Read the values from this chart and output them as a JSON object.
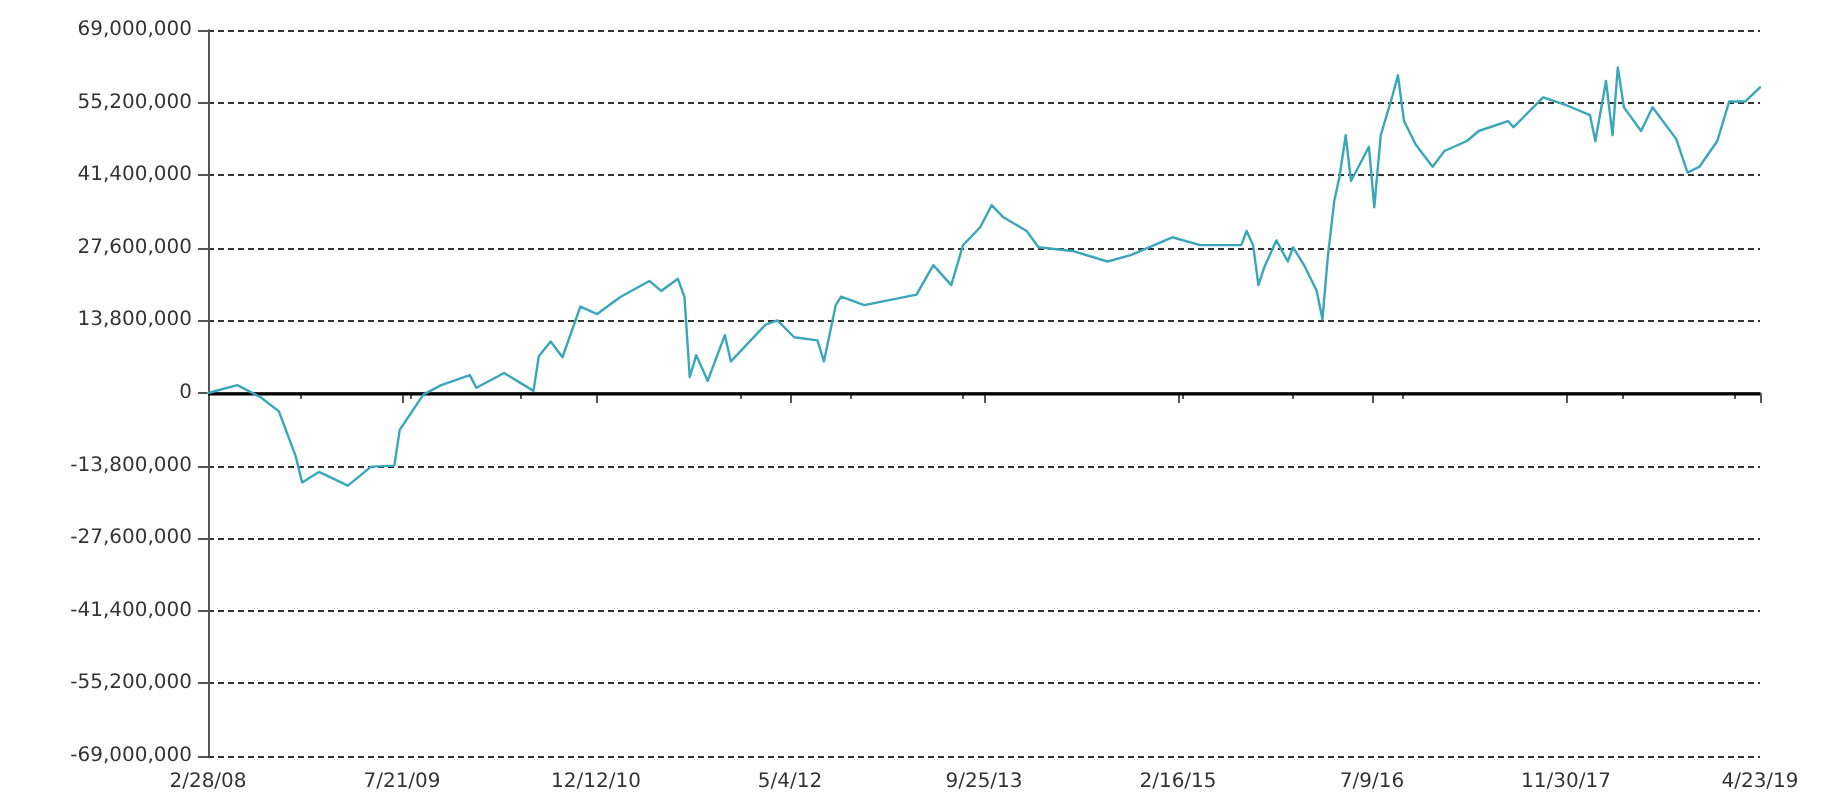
{
  "chart_data": {
    "type": "line",
    "x": [
      "2008-02-28",
      "2008-05-15",
      "2008-07-15",
      "2008-09-01",
      "2008-10-15",
      "2008-11-01",
      "2008-12-15",
      "2009-03-01",
      "2009-05-01",
      "2009-07-01",
      "2009-07-15",
      "2009-09-15",
      "2009-11-01",
      "2010-01-15",
      "2010-02-01",
      "2010-04-15",
      "2010-07-01",
      "2010-07-15",
      "2010-08-15",
      "2010-09-15",
      "2010-11-01",
      "2010-12-15",
      "2011-02-15",
      "2011-05-01",
      "2011-06-01",
      "2011-07-15",
      "2011-08-01",
      "2011-08-15",
      "2011-09-01",
      "2011-10-01",
      "2011-11-15",
      "2011-12-01",
      "2012-03-01",
      "2012-04-01",
      "2012-05-15",
      "2012-07-15",
      "2012-08-01",
      "2012-09-01",
      "2012-09-15",
      "2012-11-15",
      "2013-04-01",
      "2013-05-15",
      "2013-07-01",
      "2013-08-01",
      "2013-09-15",
      "2013-10-15",
      "2013-11-15",
      "2014-01-15",
      "2014-02-15",
      "2014-05-15",
      "2014-08-15",
      "2014-10-15",
      "2015-02-01",
      "2015-04-15",
      "2015-08-01",
      "2015-08-15",
      "2015-09-01",
      "2015-09-15",
      "2015-10-01",
      "2015-11-01",
      "2015-12-01",
      "2015-12-15",
      "2016-01-15",
      "2016-02-15",
      "2016-03-01",
      "2016-03-15",
      "2016-04-01",
      "2016-04-15",
      "2016-05-01",
      "2016-05-15",
      "2016-07-01",
      "2016-07-15",
      "2016-08-01",
      "2016-09-01",
      "2016-09-15",
      "2016-10-01",
      "2016-11-01",
      "2016-12-15",
      "2017-01-15",
      "2017-03-15",
      "2017-04-15",
      "2017-07-01",
      "2017-07-15",
      "2017-10-01",
      "2017-12-01",
      "2018-02-01",
      "2018-02-15",
      "2018-03-15",
      "2018-04-01",
      "2018-04-15",
      "2018-05-01",
      "2018-06-15",
      "2018-07-15",
      "2018-09-15",
      "2018-10-15",
      "2018-11-15",
      "2019-01-01",
      "2019-02-01",
      "2019-03-15",
      "2019-04-23"
    ],
    "series": [
      {
        "color": "#3aa6b9",
        "values": [
          0,
          1500000,
          -800000,
          -3500000,
          -12000000,
          -17000000,
          -15000000,
          -17600000,
          -14000000,
          -13800000,
          -7000000,
          -300000,
          1500000,
          3400000,
          1000000,
          3800000,
          400000,
          7000000,
          9800000,
          6800000,
          16400000,
          15000000,
          18300000,
          21300000,
          19400000,
          21700000,
          18300000,
          3000000,
          7200000,
          2300000,
          11000000,
          6000000,
          13000000,
          13800000,
          10600000,
          10000000,
          6000000,
          16700000,
          18300000,
          16700000,
          18700000,
          24300000,
          20500000,
          28100000,
          31500000,
          35700000,
          33400000,
          30800000,
          27700000,
          27000000,
          25000000,
          26200000,
          29600000,
          28100000,
          28100000,
          30800000,
          28100000,
          20500000,
          24000000,
          29000000,
          25000000,
          27700000,
          24000000,
          19400000,
          14000000,
          25800000,
          36500000,
          41200000,
          49000000,
          40300000,
          46800000,
          35300000,
          49000000,
          56600000,
          60400000,
          51700000,
          47200000,
          43000000,
          46000000,
          47900000,
          49800000,
          51700000,
          50500000,
          56200000,
          54700000,
          52800000,
          47900000,
          59300000,
          49000000,
          61900000,
          54300000,
          49800000,
          54300000,
          48300000,
          41900000,
          43000000,
          47900000,
          55400000,
          55400000,
          58100000
        ]
      }
    ],
    "xlim": [
      "2008-02-28",
      "2019-04-23"
    ],
    "xticks": [
      {
        "value": "2008-02-28",
        "label": "2/28/08"
      },
      {
        "value": "2009-07-21",
        "label": "7/21/09"
      },
      {
        "value": "2010-12-12",
        "label": "12/12/10"
      },
      {
        "value": "2012-05-04",
        "label": "5/4/12"
      },
      {
        "value": "2013-09-25",
        "label": "9/25/13"
      },
      {
        "value": "2015-02-16",
        "label": "2/16/15"
      },
      {
        "value": "2016-07-09",
        "label": "7/9/16"
      },
      {
        "value": "2017-11-30",
        "label": "11/30/17"
      },
      {
        "value": "2019-04-23",
        "label": "4/23/19"
      }
    ],
    "ylim": [
      -69000000,
      69000000
    ],
    "yticks": [
      {
        "value": -69000000,
        "label": "-69,000,000"
      },
      {
        "value": -55200000,
        "label": "-55,200,000"
      },
      {
        "value": -41400000,
        "label": "-41,400,000"
      },
      {
        "value": -27600000,
        "label": "-27,600,000"
      },
      {
        "value": -13800000,
        "label": "-13,800,000"
      },
      0,
      {
        "value": 13800000,
        "label": "13,800,000"
      },
      {
        "value": 27600000,
        "label": "27,600,000"
      },
      {
        "value": 41400000,
        "label": "41,400,000"
      },
      {
        "value": 55200000,
        "label": "55,200,000"
      },
      {
        "value": 69000000,
        "label": "69,000,000"
      }
    ],
    "ref_lines": [
      {
        "axis": "y",
        "value": 0,
        "color": "#000000",
        "line_style": "solid"
      }
    ],
    "grid": "y",
    "marker": "none",
    "line_style": "solid"
  }
}
